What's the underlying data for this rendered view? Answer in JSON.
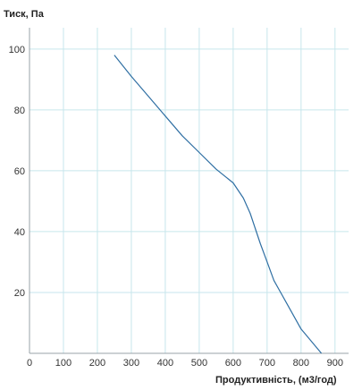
{
  "chart_data": {
    "type": "line",
    "title": "",
    "xlabel": "Продуктивність, (м3/год)",
    "ylabel": "Тиск, Па",
    "xlim": [
      0,
      940
    ],
    "ylim": [
      0,
      107
    ],
    "x_ticks": [
      0,
      100,
      200,
      300,
      400,
      500,
      600,
      700,
      800,
      900
    ],
    "y_ticks": [
      20,
      40,
      60,
      80,
      100
    ],
    "grid": true,
    "colors": {
      "line": "#2f6fa3",
      "grid": "#c7e6ec",
      "axis": "#9aa3a8"
    },
    "series": [
      {
        "x": [
          250,
          300,
          350,
          400,
          450,
          500,
          550,
          600,
          630,
          650,
          665,
          680,
          700,
          720,
          740,
          755,
          780,
          800,
          830,
          860
        ],
        "y": [
          98,
          91,
          84.5,
          78,
          71.5,
          66,
          60.5,
          56,
          51,
          46,
          41,
          36,
          30,
          24,
          20,
          17,
          12,
          8,
          4,
          0
        ]
      }
    ]
  }
}
